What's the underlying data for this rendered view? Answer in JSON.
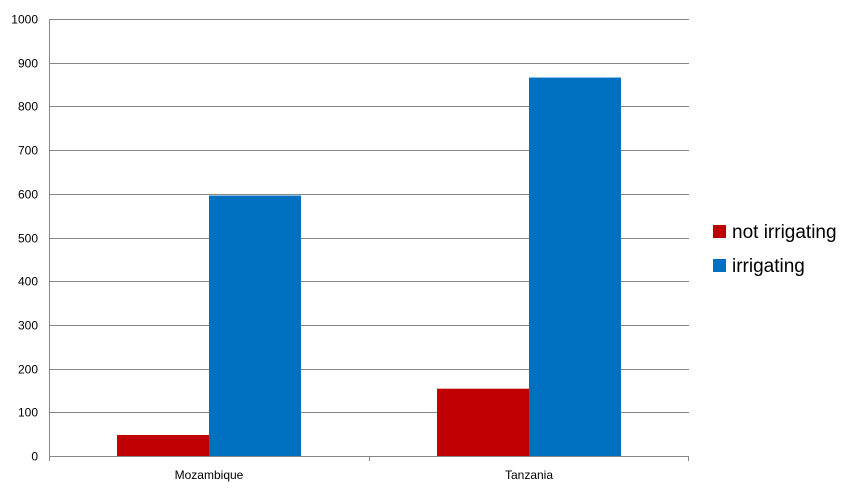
{
  "chart_data": {
    "type": "bar",
    "title": "",
    "xlabel": "",
    "ylabel": "",
    "categories": [
      "Mozambique",
      "Tanzania"
    ],
    "series": [
      {
        "name": "not irrigating",
        "color": "#C00000",
        "values": [
          48,
          154
        ]
      },
      {
        "name": "irrigating",
        "color": "#0070C0",
        "values": [
          596,
          866
        ]
      }
    ],
    "ylim": [
      0,
      1000
    ],
    "yticks": [
      0,
      100,
      200,
      300,
      400,
      500,
      600,
      700,
      800,
      900,
      1000
    ],
    "grid": true,
    "legend_position": "right",
    "gridline_color": "#868686"
  }
}
